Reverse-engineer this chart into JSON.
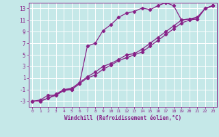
{
  "xlabel": "Windchill (Refroidissement éolien,°C)",
  "bg_color": "#c5e8e8",
  "grid_color": "#ffffff",
  "line_color": "#882288",
  "xlim": [
    -0.5,
    23.5
  ],
  "ylim": [
    -4.0,
    14.0
  ],
  "xticks": [
    0,
    1,
    2,
    3,
    4,
    5,
    6,
    7,
    8,
    9,
    10,
    11,
    12,
    13,
    14,
    15,
    16,
    17,
    18,
    19,
    20,
    21,
    22,
    23
  ],
  "yticks": [
    -3,
    -1,
    1,
    3,
    5,
    7,
    9,
    11,
    13
  ],
  "series1_x": [
    0,
    1,
    2,
    3,
    4,
    5,
    6,
    7,
    8,
    9,
    10,
    11,
    12,
    13,
    14,
    15,
    16,
    17,
    18,
    19,
    20,
    21,
    22,
    23
  ],
  "series1_y": [
    -3,
    -2.8,
    -2,
    -2,
    -1,
    -1,
    0,
    6.5,
    7,
    9.2,
    10.2,
    11.5,
    12.2,
    12.5,
    13.1,
    12.8,
    13.5,
    14,
    13.5,
    11,
    11.2,
    11.2,
    13,
    13.5
  ],
  "series2_x": [
    0,
    1,
    2,
    3,
    4,
    5,
    6,
    7,
    8,
    9,
    10,
    11,
    12,
    13,
    14,
    15,
    16,
    17,
    18,
    19,
    20,
    21,
    22,
    23
  ],
  "series2_y": [
    -3,
    -3,
    -2.5,
    -2,
    -1.2,
    -1,
    0,
    1,
    1.5,
    2.5,
    3.2,
    4,
    4.5,
    5,
    5.5,
    6.5,
    7.5,
    8.5,
    9.5,
    10.5,
    11,
    11.2,
    13,
    13.5
  ],
  "series3_x": [
    0,
    1,
    2,
    3,
    4,
    5,
    6,
    7,
    8,
    9,
    10,
    11,
    12,
    13,
    14,
    15,
    16,
    17,
    18,
    19,
    20,
    21,
    22,
    23
  ],
  "series3_y": [
    -3,
    -3,
    -2.5,
    -1.8,
    -1,
    -0.8,
    0.2,
    1.2,
    2,
    3,
    3.5,
    4.2,
    5,
    5.2,
    6,
    7,
    8,
    9,
    10,
    11,
    11.2,
    11.5,
    13,
    13.5
  ],
  "marker": "D",
  "markersize": 2.2,
  "linewidth": 0.9
}
